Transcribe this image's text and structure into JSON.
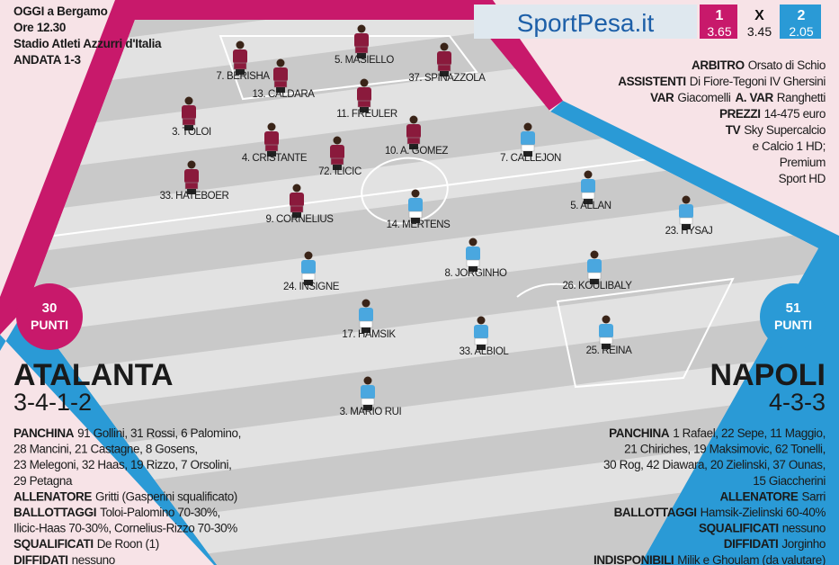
{
  "match_info": [
    "OGGI a Bergamo",
    "Ore 12.30",
    "Stadio Atleti Azzurri d'Italia",
    "ANDATA 1-3"
  ],
  "odds": {
    "brand": "SportPesa.it",
    "outcomes": [
      {
        "label": "1",
        "value": 3.65
      },
      {
        "label": "X",
        "value": 3.45
      },
      {
        "label": "2",
        "value": 2.05
      }
    ]
  },
  "officials": [
    [
      {
        "label": "ARBITRO",
        "text": "Orsato di Schio"
      }
    ],
    [
      {
        "label": "ASSISTENTI",
        "text": "Di Fiore-Tegoni IV Ghersini"
      }
    ],
    [
      {
        "label": "VAR",
        "text": "Giacomelli"
      },
      {
        "label": "A. VAR",
        "text": "Ranghetti"
      }
    ],
    [
      {
        "label": "PREZZI",
        "text": "14-475 euro"
      }
    ],
    [
      {
        "label": "TV",
        "text": "Sky Supercalcio"
      }
    ],
    [
      {
        "text": "e Calcio 1 HD;"
      }
    ],
    [
      {
        "text": "Premium"
      }
    ],
    [
      {
        "text": "Sport HD"
      }
    ]
  ],
  "home": {
    "name": "ATALANTA",
    "formation": "3-4-1-2",
    "points": 30,
    "points_label": "PUNTI",
    "players": [
      "7. BERISHA",
      "5. MASIELLO",
      "13. CALDARA",
      "37. SPINAZZOLA",
      "11. FREULER",
      "3. TOLOI",
      "4. CRISTANTE",
      "10. A. GOMEZ",
      "72. ILICIC",
      "33. HATEBOER",
      "9. CORNELIUS"
    ],
    "details": [
      [
        {
          "label": "PANCHINA",
          "text": "91 Gollini, 31 Rossi, 6 Palomino,"
        }
      ],
      [
        {
          "text": "28 Mancini, 21 Castagne, 8 Gosens,"
        }
      ],
      [
        {
          "text": "23 Melegoni, 32 Haas, 19 Rizzo, 7 Orsolini,"
        }
      ],
      [
        {
          "text": "29 Petagna"
        }
      ],
      [
        {
          "label": "ALLENATORE",
          "text": "Gritti (Gasperini squalificato)"
        }
      ],
      [
        {
          "label": "BALLOTTAGGI",
          "text": "Toloi-Palomino 70-30%,"
        }
      ],
      [
        {
          "text": "Ilicic-Haas 70-30%, Cornelius-Rizzo 70-30%"
        }
      ],
      [
        {
          "label": "SQUALIFICATI",
          "text": "De Roon (1)"
        }
      ],
      [
        {
          "label": "DIFFIDATI",
          "text": "nessuno"
        }
      ]
    ]
  },
  "away": {
    "name": "NAPOLI",
    "formation": "4-3-3",
    "points": 51,
    "points_label": "PUNTI",
    "players": [
      "7. CALLEJON",
      "5. ALLAN",
      "23. HYSAJ",
      "14. MERTENS",
      "8. JORGINHO",
      "26. KOULIBALY",
      "24. INSIGNE",
      "17. HAMSIK",
      "33. ALBIOL",
      "25. REINA",
      "3. MARIO RUI"
    ],
    "details": [
      [
        {
          "label": "PANCHINA",
          "text": "1 Rafael, 22 Sepe, 11 Maggio,"
        }
      ],
      [
        {
          "text": "21 Chiriches, 19 Maksimovic, 62 Tonelli,"
        }
      ],
      [
        {
          "text": "30 Rog, 42 Diawara, 20 Zielinski, 37 Ounas,"
        }
      ],
      [
        {
          "text": "15 Giaccherini"
        }
      ],
      [
        {
          "label": "ALLENATORE",
          "text": "Sarri"
        }
      ],
      [
        {
          "label": "BALLOTTAGGI",
          "text": "Hamsik-Zielinski 60-40%"
        }
      ],
      [
        {
          "label": "SQUALIFICATI",
          "text": "nessuno"
        }
      ],
      [
        {
          "label": "DIFFIDATI",
          "text": "Jorginho"
        }
      ],
      [
        {
          "label": "INDISPONIBILI",
          "text": "Milik e Ghoulam (da valutare)"
        }
      ]
    ]
  }
}
